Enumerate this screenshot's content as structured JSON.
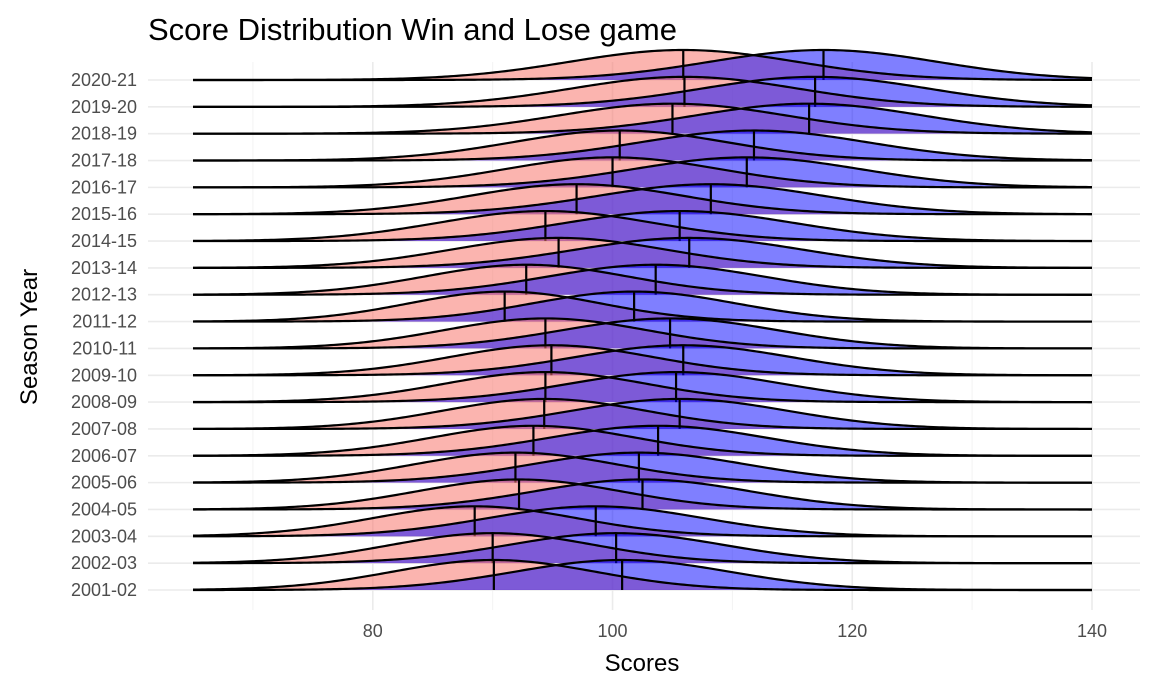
{
  "chart_data": {
    "type": "ridgeline-density",
    "title": "Score Distribution Win and Lose game",
    "xlabel": "Scores",
    "ylabel": "Season Year",
    "xlim": [
      65,
      140
    ],
    "xticks": [
      80,
      100,
      120,
      140
    ],
    "grid": true,
    "colors": {
      "Lose": "#F8766D",
      "Win": "#0000FF",
      "overlap": "#A14FA0"
    },
    "categories": [
      "2001-02",
      "2002-03",
      "2003-04",
      "2004-05",
      "2005-06",
      "2006-07",
      "2007-08",
      "2008-09",
      "2009-10",
      "2010-11",
      "2011-12",
      "2012-13",
      "2013-14",
      "2014-15",
      "2015-16",
      "2016-17",
      "2017-18",
      "2018-19",
      "2019-20",
      "2020-21"
    ],
    "series": [
      {
        "name": "Lose",
        "medians": [
          90.1,
          90.0,
          88.5,
          92.2,
          91.9,
          93.4,
          94.3,
          94.4,
          94.9,
          94.4,
          91.0,
          92.8,
          95.5,
          94.4,
          97.0,
          100.0,
          100.6,
          105.0,
          106.0,
          105.9
        ],
        "sd": [
          8.5,
          8.5,
          8.5,
          8.5,
          8.5,
          8.5,
          8.5,
          8.5,
          8.5,
          8.5,
          8.0,
          8.5,
          9.0,
          9.0,
          9.0,
          9.0,
          9.0,
          9.5,
          9.5,
          9.5
        ]
      },
      {
        "name": "Win",
        "medians": [
          100.8,
          100.3,
          98.6,
          102.5,
          102.2,
          103.8,
          105.6,
          105.3,
          105.9,
          104.8,
          101.8,
          103.6,
          106.4,
          105.6,
          108.2,
          111.2,
          111.8,
          116.4,
          116.9,
          117.6
        ],
        "sd": [
          9.0,
          9.0,
          9.0,
          9.0,
          9.0,
          9.0,
          9.0,
          9.0,
          9.0,
          9.0,
          8.5,
          9.0,
          9.5,
          9.5,
          9.5,
          9.5,
          9.5,
          9.5,
          9.5,
          9.5
        ]
      }
    ]
  }
}
